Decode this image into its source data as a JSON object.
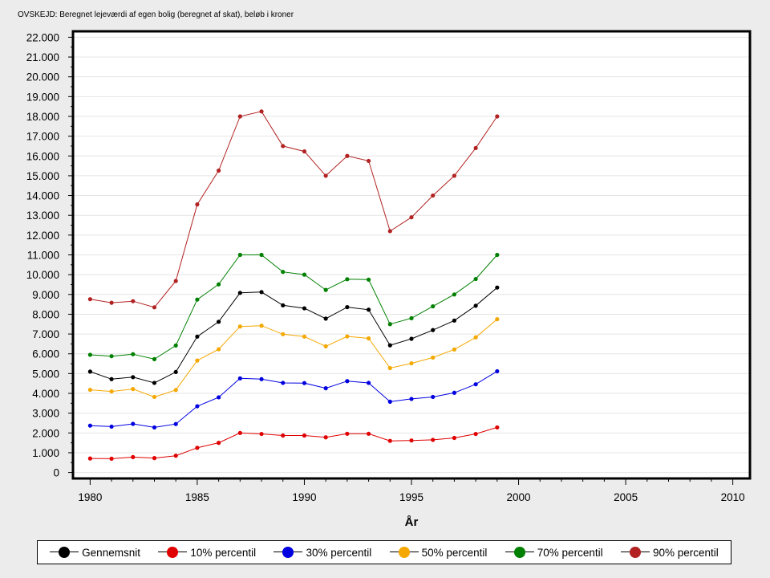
{
  "chart_data": {
    "type": "line",
    "title": "OVSKEJD: Beregnet lejeværdi af egen bolig (beregnet af skat), beløb i kroner",
    "xlabel": "År",
    "ylabel": "",
    "xlim": [
      1979.2,
      2010.8
    ],
    "ylim": [
      -300,
      22300
    ],
    "xticks": [
      1980,
      1985,
      1990,
      1995,
      2000,
      2005,
      2010
    ],
    "xtick_labels": [
      "1980",
      "1985",
      "1990",
      "1995",
      "2000",
      "2005",
      "2010"
    ],
    "yticks": [
      0,
      1000,
      2000,
      3000,
      4000,
      5000,
      6000,
      7000,
      8000,
      9000,
      10000,
      11000,
      12000,
      13000,
      14000,
      15000,
      16000,
      17000,
      18000,
      19000,
      20000,
      21000,
      22000
    ],
    "ytick_labels": [
      "0",
      "1.000",
      "2.000",
      "3.000",
      "4.000",
      "5.000",
      "6.000",
      "7.000",
      "8.000",
      "9.000",
      "10.000",
      "11.000",
      "12.000",
      "13.000",
      "14.000",
      "15.000",
      "16.000",
      "17.000",
      "18.000",
      "19.000",
      "20.000",
      "21.000",
      "22.000"
    ],
    "grid": true,
    "legend_position": "bottom",
    "x": [
      1980,
      1981,
      1982,
      1983,
      1984,
      1985,
      1986,
      1987,
      1988,
      1989,
      1990,
      1991,
      1992,
      1993,
      1994,
      1995,
      1996,
      1997,
      1998,
      1999
    ],
    "series": [
      {
        "name": "Gennemsnit",
        "color": "#000000",
        "values": [
          5100,
          4720,
          4820,
          4530,
          5080,
          6870,
          7620,
          9080,
          9120,
          8450,
          8300,
          7780,
          8360,
          8230,
          6430,
          6760,
          7200,
          7680,
          8430,
          9350
        ]
      },
      {
        "name": "10% percentil",
        "color": "#e00000",
        "values": [
          710,
          700,
          780,
          730,
          850,
          1250,
          1500,
          2000,
          1950,
          1870,
          1870,
          1780,
          1960,
          1960,
          1600,
          1620,
          1650,
          1750,
          1950,
          2280
        ]
      },
      {
        "name": "30% percentil",
        "color": "#0000e0",
        "values": [
          2370,
          2320,
          2460,
          2280,
          2450,
          3350,
          3800,
          4760,
          4720,
          4530,
          4520,
          4260,
          4620,
          4530,
          3580,
          3720,
          3820,
          4030,
          4460,
          5120
        ]
      },
      {
        "name": "50% percentil",
        "color": "#f5a800",
        "values": [
          4180,
          4100,
          4220,
          3820,
          4170,
          5660,
          6230,
          7380,
          7420,
          6990,
          6870,
          6380,
          6880,
          6780,
          5280,
          5520,
          5810,
          6220,
          6830,
          7750
        ]
      },
      {
        "name": "70% percentil",
        "color": "#008000",
        "values": [
          5950,
          5880,
          5980,
          5730,
          6420,
          8740,
          9510,
          11000,
          11000,
          10140,
          10000,
          9230,
          9770,
          9750,
          7500,
          7800,
          8400,
          9000,
          9780,
          11000
        ]
      },
      {
        "name": "90% percentil",
        "color": "#b22222",
        "values": [
          8760,
          8580,
          8660,
          8350,
          9680,
          13550,
          15260,
          18000,
          18250,
          16500,
          16230,
          15000,
          16000,
          15750,
          12200,
          12900,
          14000,
          15000,
          16400,
          18000
        ]
      }
    ]
  }
}
